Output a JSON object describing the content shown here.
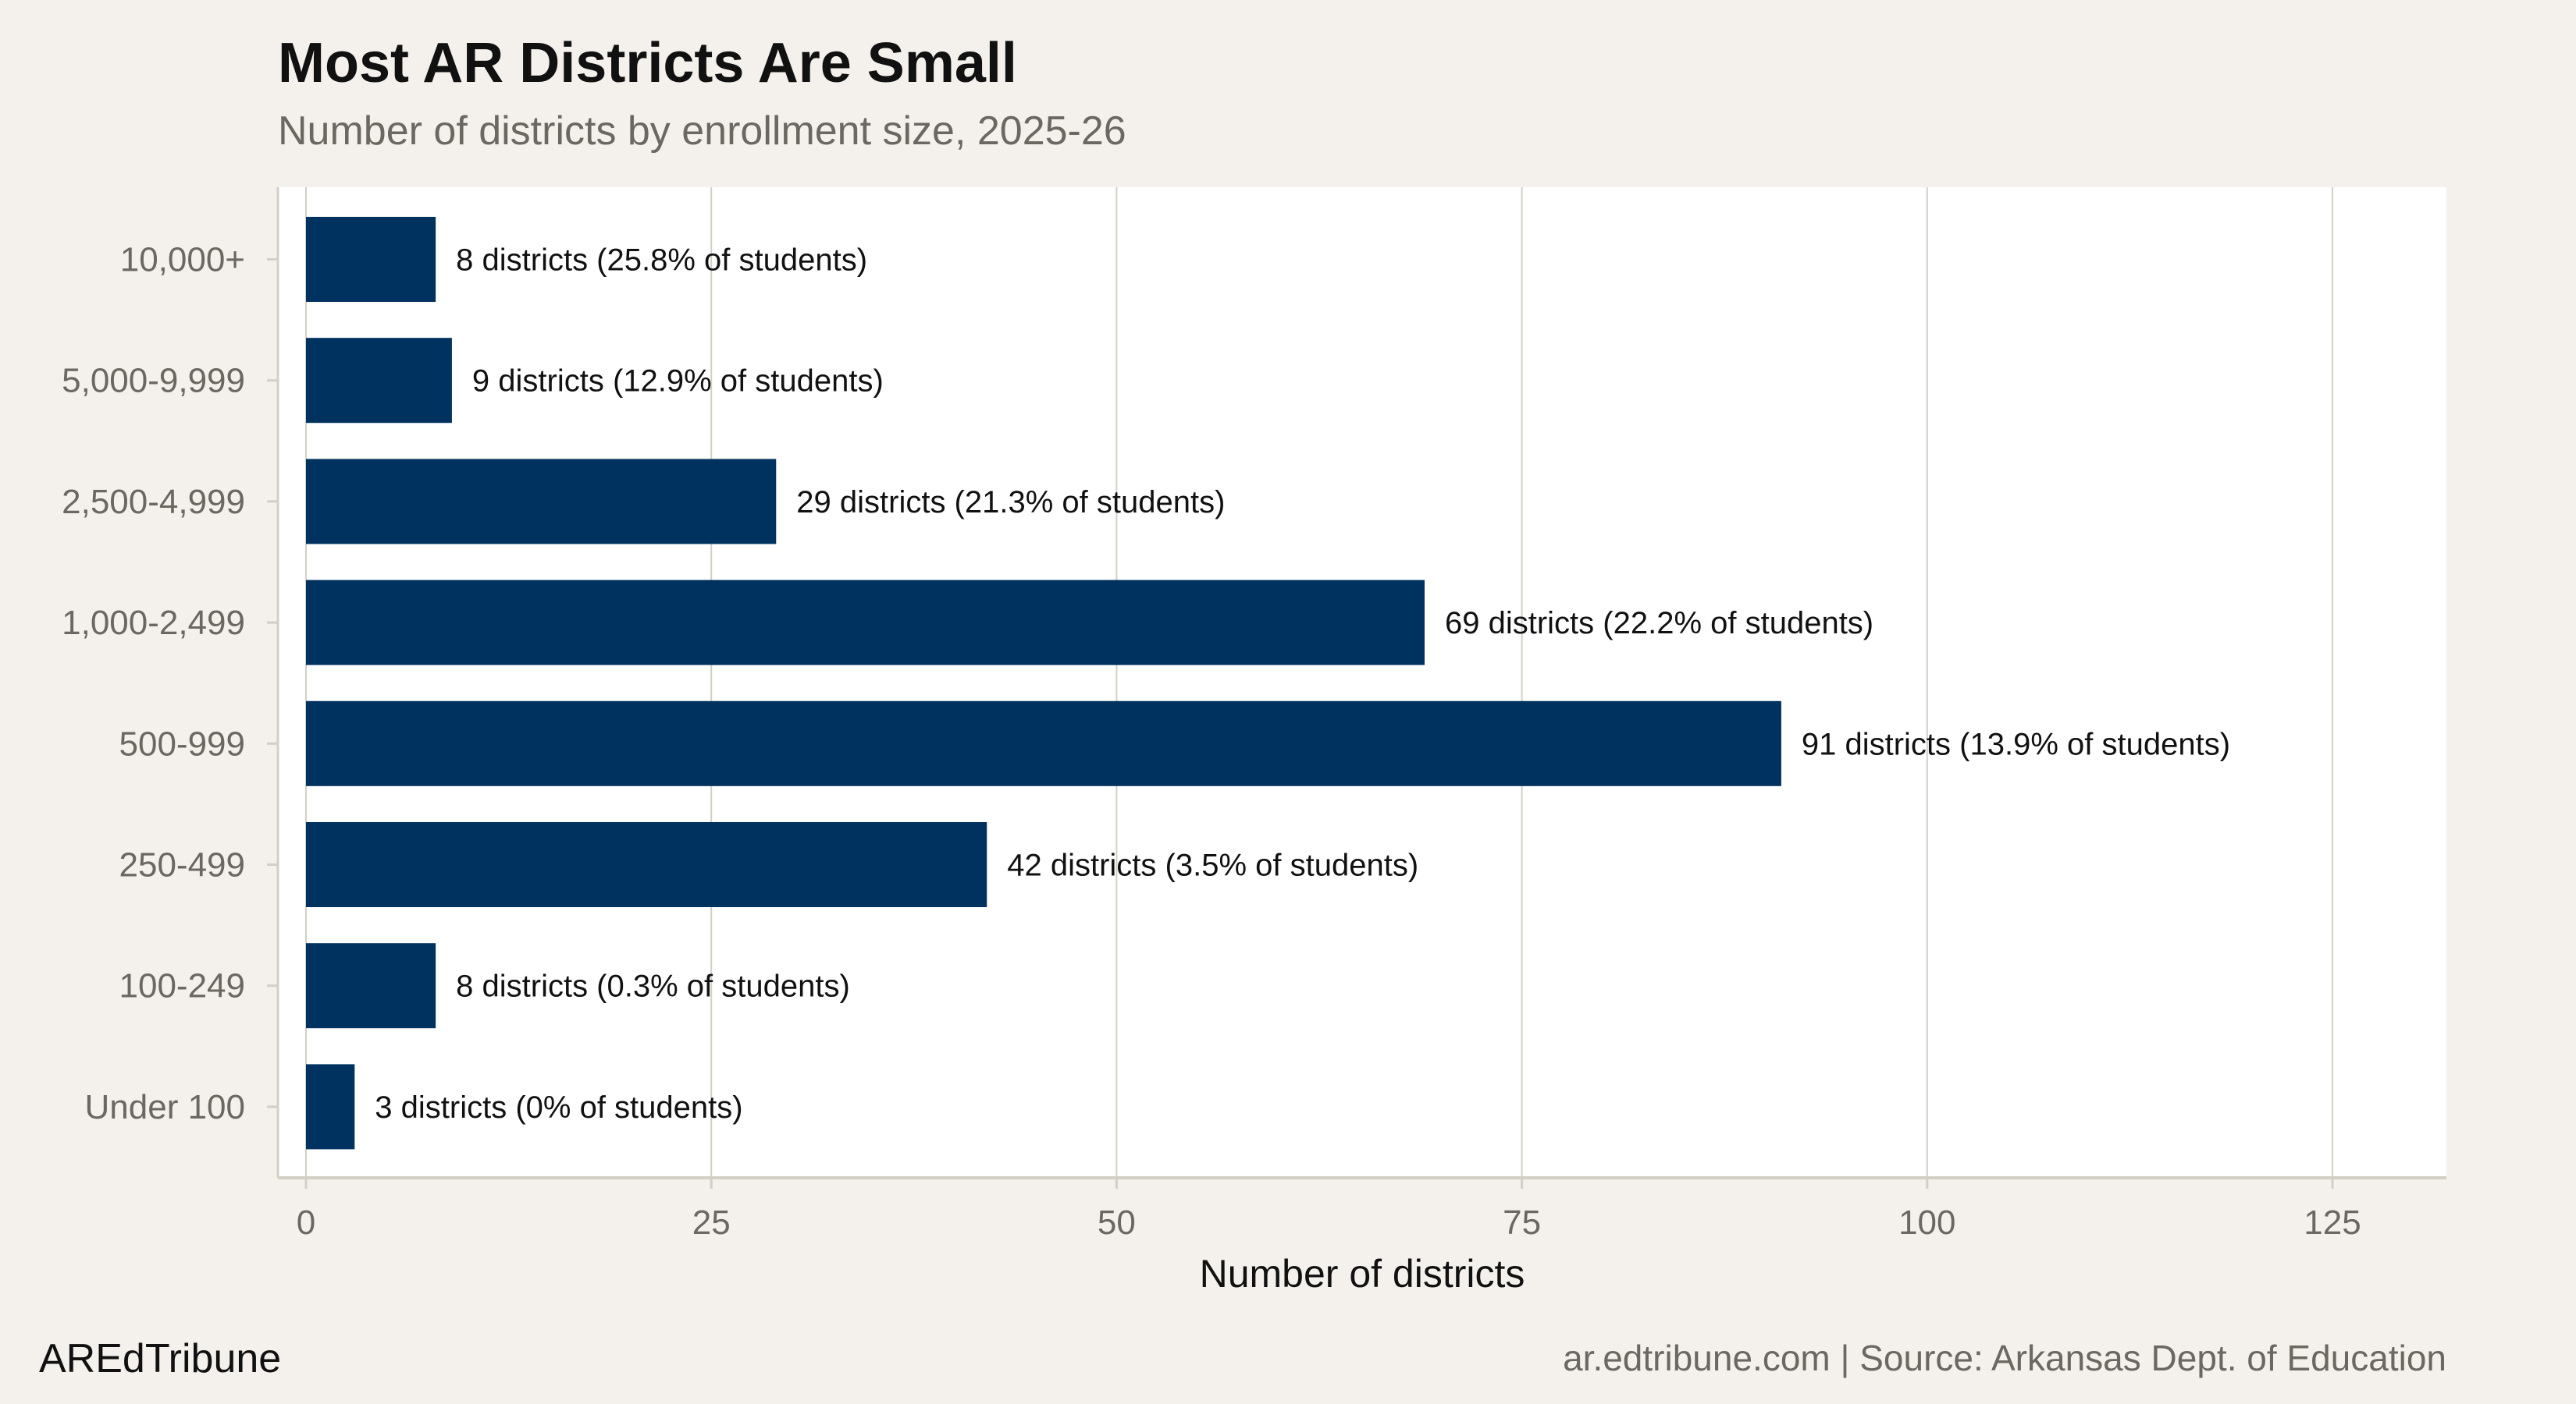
{
  "chart_data": {
    "type": "bar",
    "orientation": "horizontal",
    "title": "Most AR Districts Are Small",
    "subtitle": "Number of districts by enrollment size, 2025-26",
    "xlabel": "Number of districts",
    "ylabel": "",
    "categories": [
      "10,000+",
      "5,000-9,999",
      "2,500-4,999",
      "1,000-2,499",
      "500-999",
      "250-499",
      "100-249",
      "Under 100"
    ],
    "values": [
      8,
      9,
      29,
      69,
      91,
      42,
      8,
      3
    ],
    "data_labels": [
      "8 districts (25.8% of students)",
      "9 districts (12.9% of students)",
      "29 districts (21.3% of students)",
      "69 districts (22.2% of students)",
      "91 districts (13.9% of students)",
      "42 districts (3.5% of students)",
      "8 districts (0.3% of students)",
      "3 districts (0% of students)"
    ],
    "xlim": [
      0,
      132
    ],
    "xticks": [
      0,
      25,
      50,
      75,
      100,
      125
    ],
    "xtick_labels": [
      "0",
      "25",
      "50",
      "75",
      "100",
      "125"
    ],
    "grid": "vertical major",
    "colors": {
      "bar": "#00325f",
      "panel": "#ffffff",
      "background": "#f4f1ec",
      "grid": "#d3cfc7"
    }
  },
  "footer": {
    "brand": "AREdTribune",
    "source": "ar.edtribune.com | Source: Arkansas Dept. of Education"
  }
}
